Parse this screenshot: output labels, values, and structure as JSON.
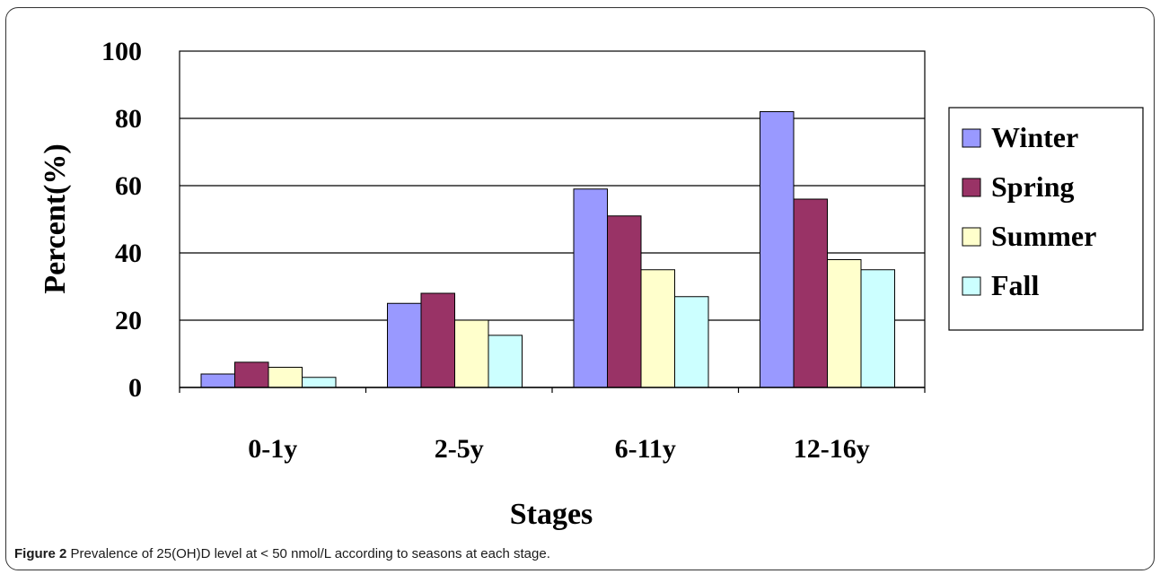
{
  "chart_data": {
    "type": "bar",
    "categories": [
      "0-1y",
      "2-5y",
      "6-11y",
      "12-16y"
    ],
    "series": [
      {
        "name": "Winter",
        "color": "#9999ff",
        "values": [
          4,
          25,
          59,
          82
        ]
      },
      {
        "name": "Spring",
        "color": "#993366",
        "values": [
          7.5,
          28,
          51,
          56
        ]
      },
      {
        "name": "Summer",
        "color": "#ffffcc",
        "values": [
          6,
          20,
          35,
          38
        ]
      },
      {
        "name": "Fall",
        "color": "#ccffff",
        "values": [
          3,
          15.5,
          27,
          35
        ]
      }
    ],
    "yticks": [
      "0",
      "20",
      "40",
      "60",
      "80",
      "100"
    ],
    "ylim": [
      0,
      100
    ],
    "xlabel": "Stages",
    "ylabel": "Percent(%)",
    "grid": true,
    "legend_position": "right"
  },
  "caption": {
    "label": "Figure 2",
    "text": " Prevalence of 25(OH)D level at < 50 nmol/L according to seasons at each stage",
    "trailing": "."
  }
}
